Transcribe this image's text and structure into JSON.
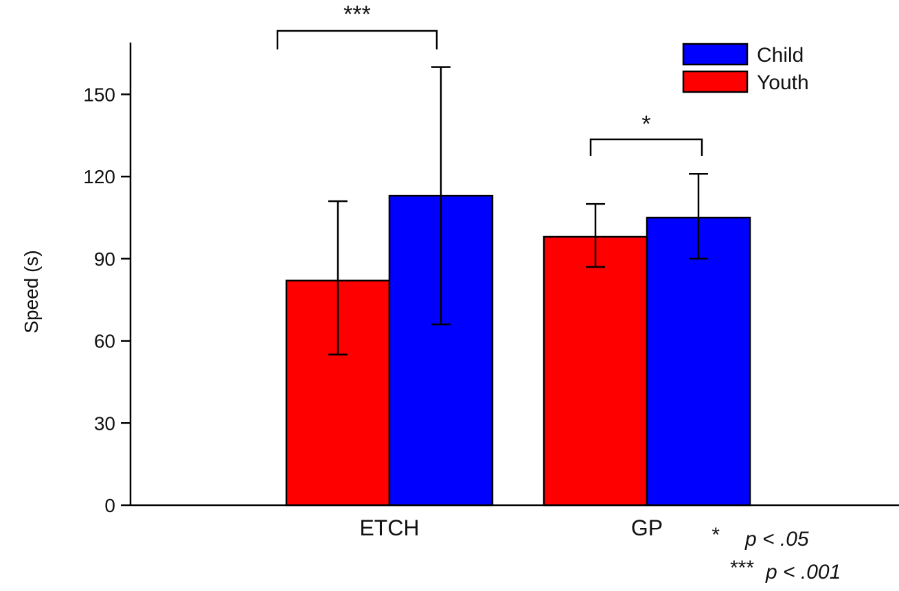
{
  "chart_data": {
    "type": "bar",
    "ylabel": "Speed (s)",
    "ylim": [
      0,
      170
    ],
    "yticks": [
      0,
      30,
      60,
      90,
      120,
      150
    ],
    "categories": [
      "ETCH",
      "GP"
    ],
    "series": [
      {
        "name": "Youth",
        "color": "#ff0000",
        "values": [
          82,
          98
        ],
        "error": [
          [
            55,
            111
          ],
          [
            87,
            110
          ]
        ]
      },
      {
        "name": "Child",
        "color": "#0000ff",
        "values": [
          113,
          105
        ],
        "error": [
          [
            66,
            160
          ],
          [
            90,
            121
          ]
        ]
      }
    ],
    "legend": {
      "placement": "top-right",
      "order": [
        "Child",
        "Youth"
      ]
    },
    "significance": [
      {
        "category": "ETCH",
        "label": "***"
      },
      {
        "category": "GP",
        "label": "*"
      }
    ],
    "notes": [
      {
        "marker": "*",
        "text": "p < .05"
      },
      {
        "marker": "***",
        "text": "p < .001"
      }
    ],
    "grid": false
  }
}
